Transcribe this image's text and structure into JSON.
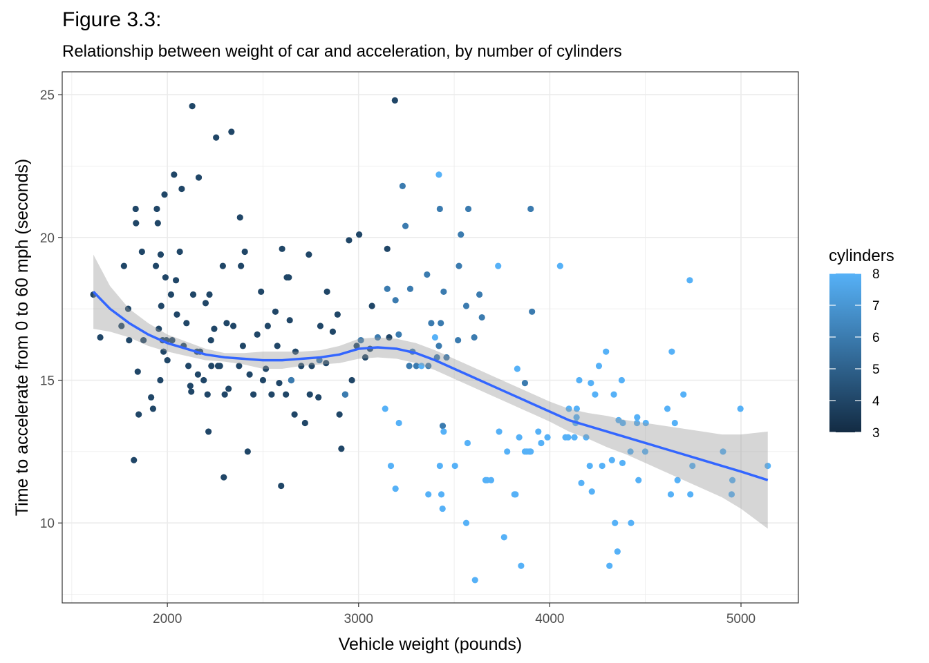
{
  "figure": {
    "title": "Figure 3.3:",
    "subtitle": "Relationship between weight of car and acceleration, by number of cylinders"
  },
  "chart_data": {
    "type": "scatter",
    "title": "Figure 3.3:",
    "subtitle": "Relationship between weight of car and acceleration, by number of cylinders",
    "xlabel": "Vehicle weight (pounds)",
    "ylabel": "Time to accelerate from 0 to 60 mph (seconds)",
    "xlim": [
      1450,
      5300
    ],
    "ylim": [
      7.2,
      25.8
    ],
    "x_ticks": [
      2000,
      3000,
      4000,
      5000
    ],
    "y_ticks": [
      10,
      15,
      20,
      25
    ],
    "x_tick_labels": [
      "2000",
      "3000",
      "4000",
      "5000"
    ],
    "y_tick_labels": [
      "10",
      "15",
      "20",
      "25"
    ],
    "grid": true,
    "legend": {
      "title": "cylinders",
      "placement": "right",
      "ticks": [
        3,
        4,
        5,
        6,
        7,
        8
      ],
      "tick_labels": [
        "3",
        "4",
        "5",
        "6",
        "7",
        "8"
      ],
      "color_low": "#132B43",
      "color_high": "#56B1F7",
      "range": [
        3,
        8
      ]
    },
    "colors": {
      "smooth_line": "#3366FF",
      "ribbon": "#999999",
      "grid": "#ebebeb",
      "panel_border": "#333333"
    },
    "series": [
      {
        "cylinders": 4,
        "points": [
          [
            1613,
            18.0
          ],
          [
            1649,
            16.5
          ],
          [
            1760,
            16.9
          ],
          [
            1773,
            19.0
          ],
          [
            1795,
            17.5
          ],
          [
            1800,
            16.4
          ],
          [
            1825,
            12.2
          ],
          [
            1834,
            21.0
          ],
          [
            1836,
            20.5
          ],
          [
            1845,
            15.3
          ],
          [
            1850,
            13.8
          ],
          [
            1867,
            19.5
          ],
          [
            1875,
            16.4
          ],
          [
            1915,
            14.4
          ],
          [
            1925,
            14.0
          ],
          [
            1940,
            19.0
          ],
          [
            1945,
            21.0
          ],
          [
            1950,
            20.5
          ],
          [
            1955,
            16.8
          ],
          [
            1963,
            15.0
          ],
          [
            1965,
            19.4
          ],
          [
            1968,
            17.6
          ],
          [
            1975,
            16.4
          ],
          [
            1980,
            16.0
          ],
          [
            1985,
            21.5
          ],
          [
            1990,
            18.6
          ],
          [
            1995,
            16.4
          ],
          [
            2000,
            15.7
          ],
          [
            2019,
            18.0
          ],
          [
            2025,
            16.4
          ],
          [
            2035,
            22.2
          ],
          [
            2045,
            18.5
          ],
          [
            2050,
            17.3
          ],
          [
            2065,
            19.5
          ],
          [
            2075,
            21.7
          ],
          [
            2085,
            16.2
          ],
          [
            2100,
            17.0
          ],
          [
            2110,
            15.5
          ],
          [
            2120,
            14.8
          ],
          [
            2125,
            14.6
          ],
          [
            2130,
            24.6
          ],
          [
            2135,
            18.0
          ],
          [
            2155,
            16.0
          ],
          [
            2160,
            15.2
          ],
          [
            2164,
            22.1
          ],
          [
            2171,
            16.0
          ],
          [
            2190,
            15.0
          ],
          [
            2200,
            17.7
          ],
          [
            2210,
            14.5
          ],
          [
            2215,
            13.2
          ],
          [
            2220,
            18.0
          ],
          [
            2228,
            16.4
          ],
          [
            2230,
            15.5
          ],
          [
            2245,
            16.8
          ],
          [
            2255,
            23.5
          ],
          [
            2265,
            15.5
          ],
          [
            2275,
            15.5
          ],
          [
            2290,
            19.0
          ],
          [
            2295,
            11.6
          ],
          [
            2300,
            14.5
          ],
          [
            2310,
            17.0
          ],
          [
            2320,
            14.7
          ],
          [
            2335,
            23.7
          ],
          [
            2345,
            16.9
          ],
          [
            2375,
            15.5
          ],
          [
            2380,
            20.7
          ],
          [
            2385,
            19.0
          ],
          [
            2395,
            16.2
          ],
          [
            2405,
            19.5
          ],
          [
            2420,
            12.5
          ],
          [
            2430,
            15.2
          ],
          [
            2450,
            14.5
          ],
          [
            2470,
            16.6
          ],
          [
            2490,
            18.1
          ],
          [
            2500,
            15.0
          ],
          [
            2515,
            15.4
          ],
          [
            2525,
            16.9
          ],
          [
            2545,
            14.5
          ],
          [
            2565,
            17.4
          ],
          [
            2575,
            16.2
          ],
          [
            2585,
            14.9
          ],
          [
            2595,
            11.3
          ],
          [
            2600,
            19.6
          ],
          [
            2620,
            14.5
          ],
          [
            2625,
            18.6
          ],
          [
            2635,
            18.6
          ],
          [
            2640,
            17.1
          ],
          [
            2648,
            15.0
          ],
          [
            2665,
            13.8
          ],
          [
            2670,
            16.0
          ],
          [
            2700,
            15.5
          ],
          [
            2720,
            13.5
          ],
          [
            2740,
            19.4
          ],
          [
            2745,
            14.5
          ],
          [
            2755,
            15.5
          ],
          [
            2790,
            14.4
          ],
          [
            2800,
            16.9
          ],
          [
            2830,
            15.6
          ],
          [
            2835,
            18.1
          ],
          [
            2865,
            16.7
          ],
          [
            2890,
            17.3
          ],
          [
            2900,
            13.8
          ],
          [
            2910,
            12.6
          ],
          [
            2930,
            14.5
          ],
          [
            2950,
            19.9
          ],
          [
            2965,
            15.0
          ],
          [
            2990,
            16.2
          ],
          [
            3003,
            20.1
          ],
          [
            3035,
            15.8
          ],
          [
            3060,
            16.1
          ],
          [
            3070,
            17.6
          ],
          [
            3150,
            19.6
          ],
          [
            3160,
            16.5
          ],
          [
            3190,
            24.8
          ]
        ]
      },
      {
        "cylinders": 6,
        "points": [
          [
            2648,
            15.0
          ],
          [
            2795,
            15.7
          ],
          [
            2930,
            14.5
          ],
          [
            3012,
            16.4
          ],
          [
            3100,
            16.5
          ],
          [
            3150,
            18.2
          ],
          [
            3193,
            17.8
          ],
          [
            3210,
            16.6
          ],
          [
            3230,
            21.8
          ],
          [
            3245,
            20.4
          ],
          [
            3265,
            15.5
          ],
          [
            3270,
            18.2
          ],
          [
            3282,
            16.0
          ],
          [
            3302,
            15.5
          ],
          [
            3358,
            18.7
          ],
          [
            3365,
            15.5
          ],
          [
            3380,
            17.0
          ],
          [
            3410,
            15.8
          ],
          [
            3420,
            16.2
          ],
          [
            3425,
            21.0
          ],
          [
            3430,
            17.0
          ],
          [
            3440,
            13.4
          ],
          [
            3445,
            18.1
          ],
          [
            3460,
            15.8
          ],
          [
            3520,
            16.4
          ],
          [
            3525,
            19.0
          ],
          [
            3535,
            20.1
          ],
          [
            3563,
            17.6
          ],
          [
            3574,
            21.0
          ],
          [
            3605,
            16.5
          ],
          [
            3632,
            18.0
          ],
          [
            3645,
            17.2
          ],
          [
            3870,
            14.9
          ],
          [
            3900,
            21.0
          ],
          [
            3907,
            17.4
          ]
        ]
      },
      {
        "cylinders": 8,
        "points": [
          [
            3139,
            14.0
          ],
          [
            3169,
            12.0
          ],
          [
            3193,
            11.2
          ],
          [
            3211,
            13.5
          ],
          [
            3329,
            15.5
          ],
          [
            3365,
            11.0
          ],
          [
            3400,
            16.5
          ],
          [
            3420,
            22.2
          ],
          [
            3425,
            12.0
          ],
          [
            3433,
            11.0
          ],
          [
            3439,
            10.5
          ],
          [
            3445,
            13.2
          ],
          [
            3504,
            12.0
          ],
          [
            3563,
            10.0
          ],
          [
            3570,
            12.8
          ],
          [
            3609,
            8.0
          ],
          [
            3664,
            11.5
          ],
          [
            3672,
            11.5
          ],
          [
            3693,
            11.5
          ],
          [
            3730,
            19.0
          ],
          [
            3735,
            13.2
          ],
          [
            3761,
            9.5
          ],
          [
            3777,
            12.5
          ],
          [
            3815,
            11.0
          ],
          [
            3821,
            11.0
          ],
          [
            3830,
            15.4
          ],
          [
            3840,
            13.0
          ],
          [
            3850,
            8.5
          ],
          [
            3870,
            12.5
          ],
          [
            3880,
            12.5
          ],
          [
            3892,
            12.5
          ],
          [
            3900,
            12.5
          ],
          [
            3940,
            13.2
          ],
          [
            3955,
            12.8
          ],
          [
            3988,
            13.0
          ],
          [
            4054,
            19.0
          ],
          [
            4082,
            13.0
          ],
          [
            4096,
            13.0
          ],
          [
            4100,
            14.0
          ],
          [
            4129,
            13.0
          ],
          [
            4135,
            13.5
          ],
          [
            4140,
            13.7
          ],
          [
            4141,
            14.0
          ],
          [
            4154,
            15.0
          ],
          [
            4165,
            11.4
          ],
          [
            4190,
            13.0
          ],
          [
            4209,
            12.0
          ],
          [
            4215,
            14.9
          ],
          [
            4220,
            11.1
          ],
          [
            4237,
            14.5
          ],
          [
            4257,
            15.5
          ],
          [
            4274,
            12.0
          ],
          [
            4294,
            16.0
          ],
          [
            4312,
            8.5
          ],
          [
            4325,
            12.2
          ],
          [
            4335,
            14.5
          ],
          [
            4341,
            10.0
          ],
          [
            4354,
            9.0
          ],
          [
            4360,
            13.6
          ],
          [
            4376,
            15.0
          ],
          [
            4380,
            12.1
          ],
          [
            4382,
            13.5
          ],
          [
            4422,
            12.5
          ],
          [
            4425,
            10.0
          ],
          [
            4456,
            13.5
          ],
          [
            4457,
            13.7
          ],
          [
            4464,
            11.5
          ],
          [
            4499,
            12.5
          ],
          [
            4502,
            13.5
          ],
          [
            4615,
            14.0
          ],
          [
            4633,
            11.0
          ],
          [
            4638,
            16.0
          ],
          [
            4654,
            13.5
          ],
          [
            4668,
            11.5
          ],
          [
            4699,
            14.5
          ],
          [
            4732,
            18.5
          ],
          [
            4735,
            11.0
          ],
          [
            4746,
            12.0
          ],
          [
            4906,
            12.5
          ],
          [
            4951,
            11.0
          ],
          [
            4955,
            11.5
          ],
          [
            4997,
            14.0
          ],
          [
            5140,
            12.0
          ]
        ]
      }
    ],
    "smooth": {
      "method": "loess",
      "x": [
        1613,
        1700,
        1800,
        1900,
        2000,
        2100,
        2200,
        2300,
        2400,
        2500,
        2600,
        2700,
        2800,
        2900,
        3000,
        3100,
        3200,
        3300,
        3400,
        3500,
        3600,
        3700,
        3800,
        3900,
        4000,
        4100,
        4200,
        4300,
        4400,
        4500,
        4600,
        4700,
        4800,
        4900,
        5000,
        5140
      ],
      "y": [
        18.1,
        17.5,
        17.0,
        16.6,
        16.3,
        16.1,
        15.9,
        15.8,
        15.75,
        15.7,
        15.7,
        15.75,
        15.8,
        15.9,
        16.1,
        16.15,
        16.1,
        15.95,
        15.7,
        15.4,
        15.1,
        14.8,
        14.5,
        14.2,
        13.9,
        13.6,
        13.4,
        13.2,
        13.0,
        12.8,
        12.6,
        12.4,
        12.2,
        12.0,
        11.8,
        11.5
      ],
      "lower": [
        16.8,
        16.7,
        16.5,
        16.2,
        16.0,
        15.85,
        15.7,
        15.65,
        15.55,
        15.4,
        15.4,
        15.5,
        15.55,
        15.6,
        15.75,
        15.8,
        15.75,
        15.6,
        15.35,
        15.05,
        14.75,
        14.45,
        14.15,
        13.85,
        13.55,
        13.2,
        12.95,
        12.65,
        12.4,
        12.1,
        11.8,
        11.5,
        11.2,
        10.9,
        10.5,
        9.8
      ],
      "upper": [
        19.4,
        18.3,
        17.5,
        17.0,
        16.6,
        16.35,
        16.1,
        15.95,
        15.95,
        16.0,
        16.0,
        16.0,
        16.05,
        16.2,
        16.45,
        16.5,
        16.45,
        16.3,
        16.05,
        15.75,
        15.45,
        15.15,
        14.85,
        14.55,
        14.25,
        14.0,
        13.85,
        13.75,
        13.6,
        13.5,
        13.4,
        13.3,
        13.2,
        13.1,
        13.1,
        13.2
      ]
    }
  }
}
